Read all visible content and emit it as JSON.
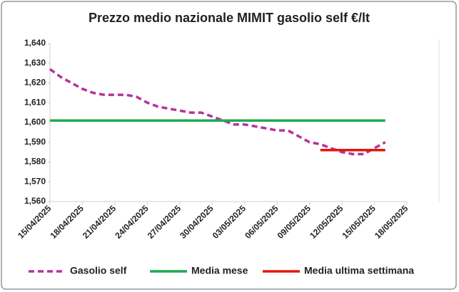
{
  "chart_data": {
    "type": "line",
    "title": "Prezzo medio nazionale MIMIT gasolio self €/lt",
    "series": [
      {
        "name": "Gasolio self",
        "color": "#b5339b",
        "dashed": true,
        "x": [
          "15/04/2025",
          "16/04/2025",
          "17/04/2025",
          "18/04/2025",
          "19/04/2025",
          "20/04/2025",
          "21/04/2025",
          "22/04/2025",
          "23/04/2025",
          "24/04/2025",
          "25/04/2025",
          "26/04/2025",
          "27/04/2025",
          "28/04/2025",
          "29/04/2025",
          "30/04/2025",
          "01/05/2025",
          "02/05/2025",
          "03/05/2025",
          "04/05/2025",
          "05/05/2025",
          "06/05/2025",
          "07/05/2025",
          "08/05/2025",
          "09/05/2025",
          "10/05/2025",
          "11/05/2025",
          "12/05/2025",
          "13/05/2025",
          "14/05/2025",
          "15/05/2025",
          "16/05/2025"
        ],
        "values": [
          1.627,
          1.623,
          1.62,
          1.617,
          1.615,
          1.614,
          1.614,
          1.614,
          1.613,
          1.61,
          1.608,
          1.607,
          1.606,
          1.605,
          1.605,
          1.603,
          1.601,
          1.599,
          1.599,
          1.598,
          1.597,
          1.596,
          1.596,
          1.593,
          1.59,
          1.589,
          1.587,
          1.585,
          1.584,
          1.584,
          1.587,
          1.59
        ]
      },
      {
        "name": "Media mese",
        "color": "#1faa50",
        "dashed": false,
        "x": [
          "15/04/2025",
          "16/05/2025"
        ],
        "values": [
          1.601,
          1.601
        ]
      },
      {
        "name": "Media ultima settimana",
        "color": "#e3170a",
        "dashed": false,
        "x": [
          "10/05/2025",
          "16/05/2025"
        ],
        "values": [
          1.586,
          1.586
        ]
      }
    ],
    "xlim": [
      "15/04/2025",
      "18/05/2025"
    ],
    "xticks": [
      "15/04/2025",
      "18/04/2025",
      "21/04/2025",
      "24/04/2025",
      "27/04/2025",
      "30/04/2025",
      "03/05/2025",
      "06/05/2025",
      "09/05/2025",
      "12/05/2025",
      "15/05/2025",
      "18/05/2025"
    ],
    "ylim": [
      1.56,
      1.64
    ],
    "yticks": [
      {
        "value": 1.56,
        "label": "1,560"
      },
      {
        "value": 1.57,
        "label": "1,570"
      },
      {
        "value": 1.58,
        "label": "1,580"
      },
      {
        "value": 1.59,
        "label": "1,590"
      },
      {
        "value": 1.6,
        "label": "1,600"
      },
      {
        "value": 1.61,
        "label": "1,610"
      },
      {
        "value": 1.62,
        "label": "1,620"
      },
      {
        "value": 1.63,
        "label": "1,630"
      },
      {
        "value": 1.64,
        "label": "1,640"
      }
    ],
    "grid": false,
    "legend": "bottom"
  }
}
